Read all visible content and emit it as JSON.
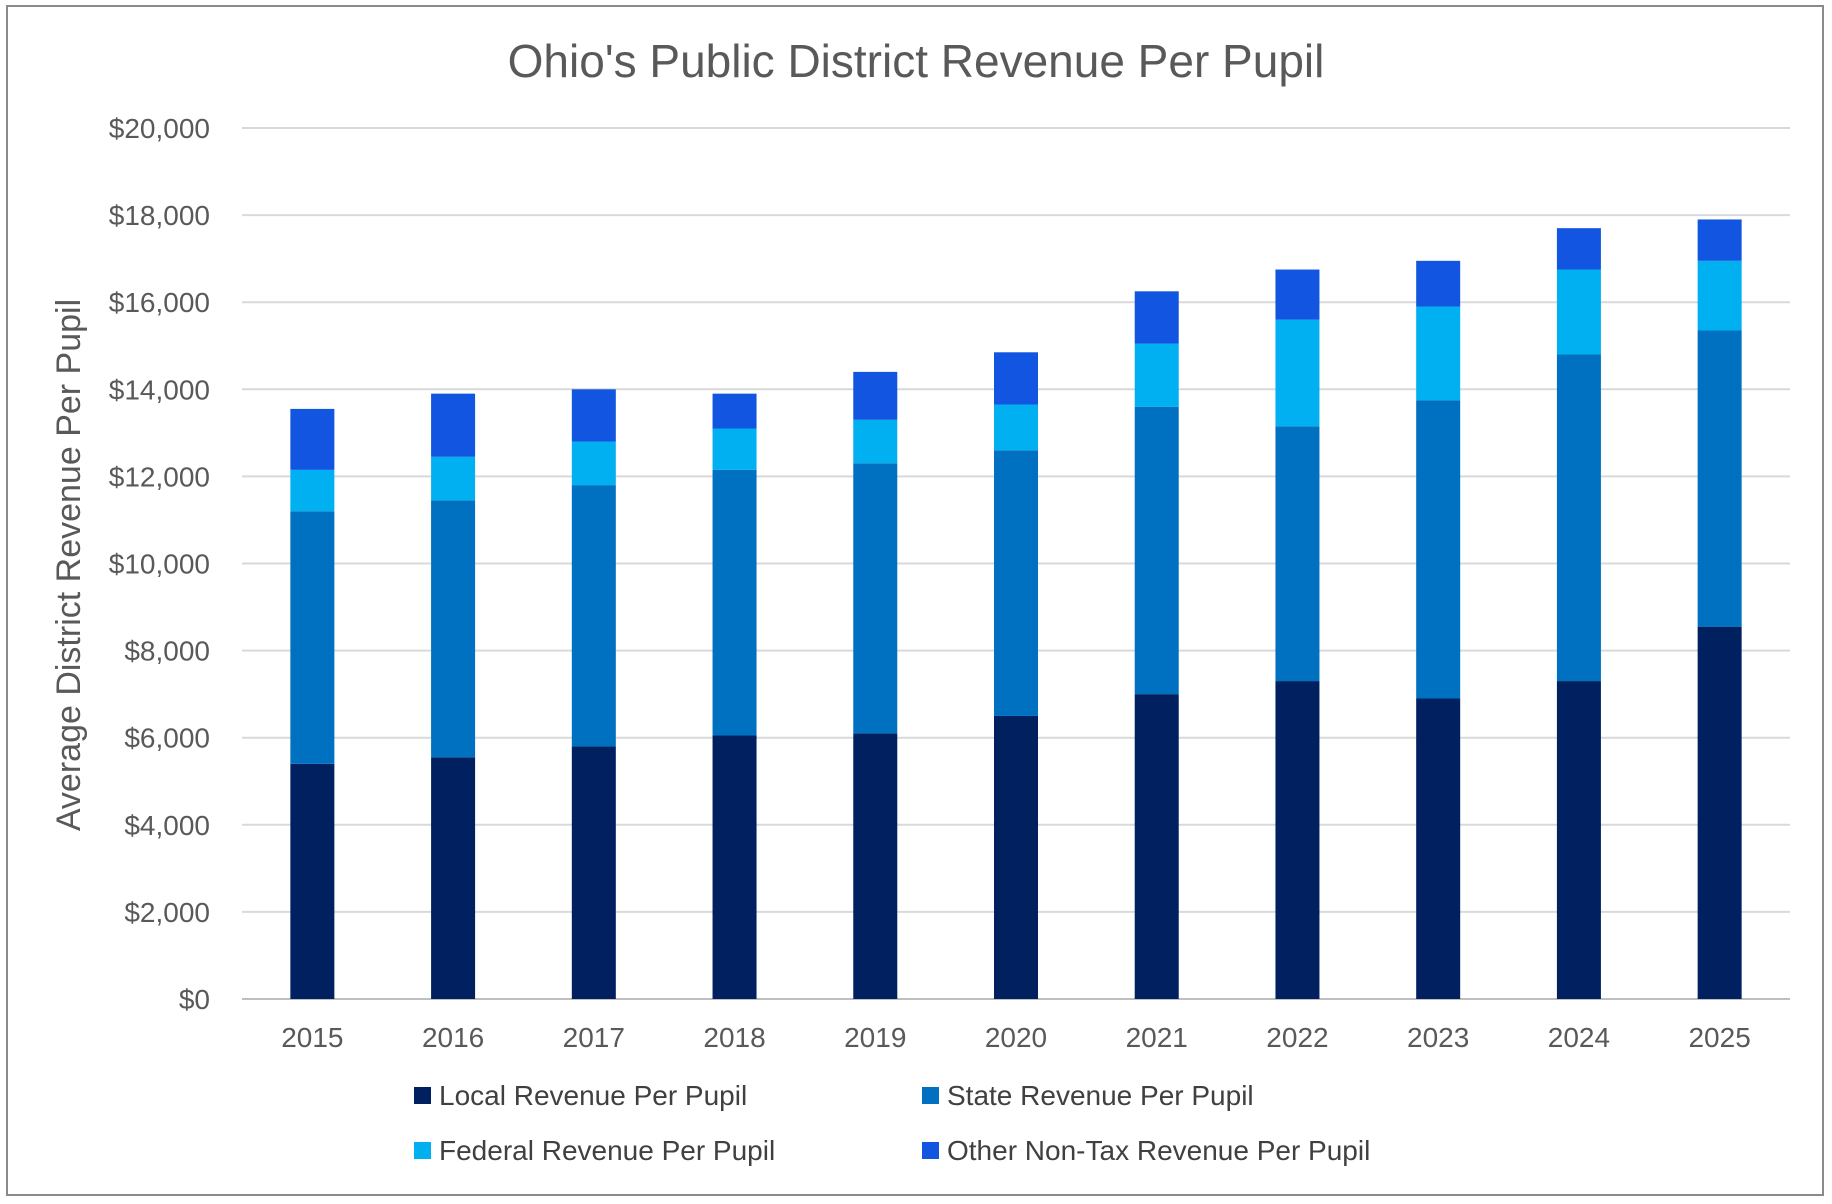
{
  "chart_data": {
    "type": "bar",
    "stacked": true,
    "title": "Ohio's Public District Revenue Per Pupil",
    "xlabel": "",
    "ylabel": "Average District Revenue Per Pupil",
    "ylim": [
      0,
      20000
    ],
    "y_ticks": [
      "$0",
      "$2,000",
      "$4,000",
      "$6,000",
      "$8,000",
      "$10,000",
      "$12,000",
      "$14,000",
      "$16,000",
      "$18,000",
      "$20,000"
    ],
    "grid": true,
    "legend_position": "bottom",
    "categories": [
      "2015",
      "2016",
      "2017",
      "2018",
      "2019",
      "2020",
      "2021",
      "2022",
      "2023",
      "2024",
      "2025"
    ],
    "series": [
      {
        "name": "Local Revenue Per Pupil",
        "color": "#002060",
        "values": [
          5400,
          5550,
          5800,
          6050,
          6100,
          6500,
          7000,
          7300,
          6900,
          7300,
          8550
        ]
      },
      {
        "name": "State Revenue Per Pupil",
        "color": "#0070C0",
        "values": [
          5800,
          5900,
          6000,
          6100,
          6200,
          6100,
          6600,
          5850,
          6850,
          7500,
          6800
        ]
      },
      {
        "name": "Federal Revenue Per Pupil",
        "color": "#00B0F0",
        "values": [
          950,
          1000,
          1000,
          950,
          1000,
          1050,
          1450,
          2450,
          2150,
          1950,
          1600
        ]
      },
      {
        "name": "Other Non-Tax Revenue Per Pupil",
        "color": "#1155E0",
        "values": [
          1400,
          1450,
          1200,
          800,
          1100,
          1200,
          1200,
          1150,
          1050,
          950,
          950
        ]
      }
    ]
  }
}
